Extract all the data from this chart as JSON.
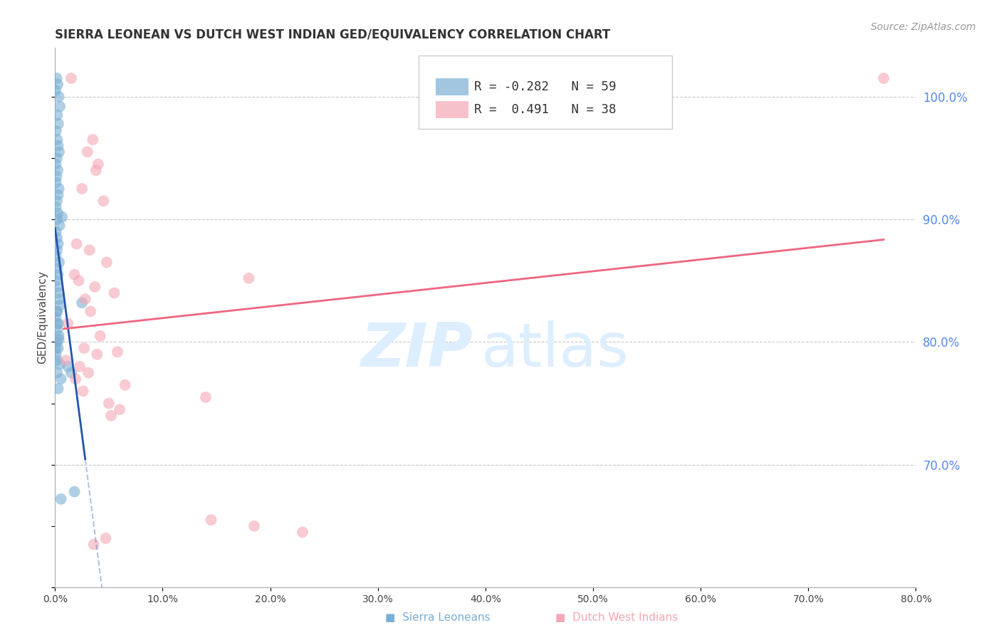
{
  "title": "SIERRA LEONEAN VS DUTCH WEST INDIAN GED/EQUIVALENCY CORRELATION CHART",
  "source": "Source: ZipAtlas.com",
  "ylabel": "GED/Equivalency",
  "right_yticks": [
    70.0,
    80.0,
    90.0,
    100.0
  ],
  "legend_blue_R": "-0.282",
  "legend_blue_N": "59",
  "legend_pink_R": "0.491",
  "legend_pink_N": "38",
  "blue_color": "#7BAFD4",
  "pink_color": "#F4A7B5",
  "blue_line_color": "#2255AA",
  "pink_line_color": "#EE6680",
  "right_tick_color": "#5588EE",
  "watermark_color": "#DDEEFF",
  "background_color": "#FFFFFF",
  "grid_color": "#BBBBBB",
  "xmin": 0.0,
  "xmax": 80.0,
  "ymin": 60.0,
  "ymax": 104.0,
  "sierra_x": [
    0.15,
    0.25,
    0.05,
    0.35,
    0.45,
    0.2,
    0.3,
    0.1,
    0.2,
    0.28,
    0.38,
    0.18,
    0.08,
    0.25,
    0.15,
    0.08,
    0.35,
    0.28,
    0.18,
    0.08,
    0.25,
    0.18,
    0.42,
    0.08,
    0.18,
    0.28,
    0.18,
    0.08,
    0.38,
    0.18,
    0.28,
    0.08,
    0.18,
    0.28,
    0.35,
    0.45,
    0.18,
    0.08,
    0.28,
    0.18,
    0.35,
    0.18,
    0.28,
    0.08,
    0.18,
    1.2,
    1.5,
    0.55,
    0.65,
    2.5,
    0.18,
    0.28,
    0.35,
    0.08,
    0.45,
    0.18,
    0.28,
    0.55,
    1.8
  ],
  "sierra_y": [
    101.5,
    101.0,
    100.5,
    100.0,
    99.2,
    98.5,
    97.8,
    97.2,
    96.5,
    96.0,
    95.5,
    95.0,
    94.5,
    94.0,
    93.5,
    93.0,
    92.5,
    92.0,
    91.5,
    91.0,
    90.5,
    90.0,
    89.5,
    89.0,
    88.5,
    88.0,
    87.5,
    87.0,
    86.5,
    86.0,
    85.5,
    85.0,
    84.5,
    84.0,
    83.5,
    83.0,
    82.5,
    82.0,
    81.5,
    81.0,
    80.5,
    80.0,
    79.5,
    79.0,
    78.5,
    78.0,
    77.5,
    77.0,
    90.2,
    83.2,
    82.5,
    81.5,
    80.2,
    79.5,
    78.2,
    77.5,
    76.2,
    67.2,
    67.8
  ],
  "dutch_x": [
    1.5,
    3.5,
    3.0,
    4.0,
    3.8,
    2.5,
    4.5,
    2.0,
    3.2,
    4.8,
    1.8,
    2.2,
    3.7,
    5.5,
    2.8,
    3.3,
    1.2,
    4.2,
    2.7,
    3.9,
    1.0,
    2.3,
    18.0,
    3.1,
    1.9,
    6.5,
    2.6,
    14.0,
    5.0,
    6.0,
    5.2,
    14.5,
    23.0,
    4.7,
    3.6,
    18.5,
    5.8,
    77.0
  ],
  "dutch_y": [
    101.5,
    96.5,
    95.5,
    94.5,
    94.0,
    92.5,
    91.5,
    88.0,
    87.5,
    86.5,
    85.5,
    85.0,
    84.5,
    84.0,
    83.5,
    82.5,
    81.5,
    80.5,
    79.5,
    79.0,
    78.5,
    78.0,
    85.2,
    77.5,
    77.0,
    76.5,
    76.0,
    75.5,
    75.0,
    74.5,
    74.0,
    65.5,
    64.5,
    64.0,
    63.5,
    65.0,
    79.2,
    101.5
  ]
}
